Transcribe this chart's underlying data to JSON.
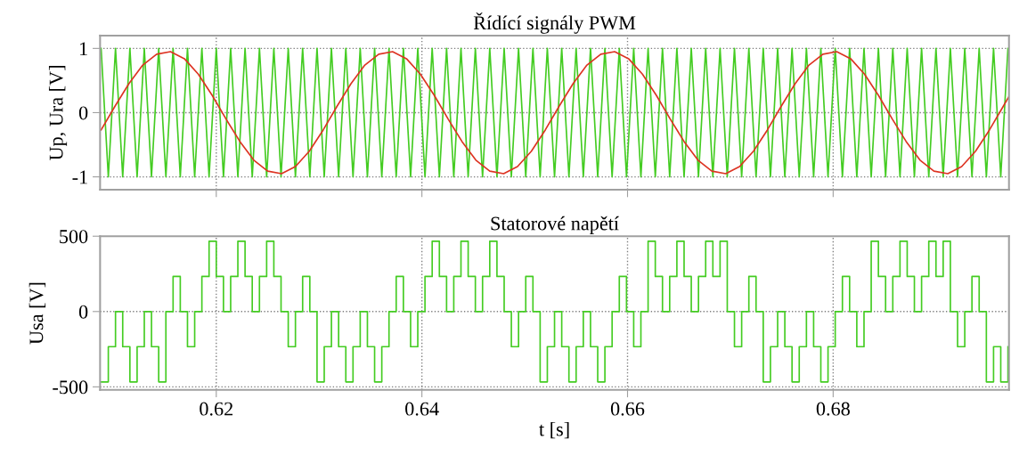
{
  "chart_data": [
    {
      "type": "line",
      "title": "Řídící signály PWM",
      "ylabel": "Up, Ura [V]",
      "xlim": [
        0.6087,
        0.6971
      ],
      "ylim": [
        -1.2,
        1.2
      ],
      "xticks": [
        0.62,
        0.64,
        0.66,
        0.68
      ],
      "yticks": [
        -1,
        0,
        1
      ],
      "grid": true,
      "tick_labels": "y",
      "series": [
        {
          "color": "#44cc22",
          "x": [
            0.6088,
            0.6095,
            0.6102,
            0.6109,
            0.6116,
            0.6123,
            0.613,
            0.6137,
            0.6144,
            0.6151,
            0.6158,
            0.6165,
            0.6172,
            0.6179,
            0.6186,
            0.6193,
            0.62,
            0.6207,
            0.6214,
            0.6221,
            0.6228,
            0.6235,
            0.6242,
            0.6249,
            0.6256,
            0.6263,
            0.627,
            0.6277,
            0.6284,
            0.6291,
            0.6298,
            0.6305,
            0.6312,
            0.6319,
            0.6326,
            0.6333,
            0.634,
            0.6347,
            0.6354,
            0.6361,
            0.6368,
            0.6375,
            0.6382,
            0.6389,
            0.6396,
            0.6403,
            0.641,
            0.6417,
            0.6424,
            0.6431,
            0.6438,
            0.6445,
            0.6452,
            0.6459,
            0.6466,
            0.6473,
            0.648,
            0.6487,
            0.6494,
            0.6501,
            0.6508,
            0.6515,
            0.6522,
            0.6529,
            0.6536,
            0.6543,
            0.655,
            0.6557,
            0.6564,
            0.6571,
            0.6578,
            0.6585,
            0.6592,
            0.6599,
            0.6606,
            0.6613,
            0.662,
            0.6627,
            0.6634,
            0.6641,
            0.6648,
            0.6655,
            0.6662,
            0.6669,
            0.6676,
            0.6683,
            0.669,
            0.6697,
            0.6704,
            0.6711,
            0.6718,
            0.6725,
            0.6732,
            0.6739,
            0.6746,
            0.6753,
            0.676,
            0.6767,
            0.6774,
            0.6781,
            0.6788,
            0.6795,
            0.6802,
            0.6809,
            0.6816,
            0.6823,
            0.683,
            0.6837,
            0.6844,
            0.6851,
            0.6858,
            0.6865,
            0.6872,
            0.6879,
            0.6886,
            0.6893,
            0.69,
            0.6907,
            0.6914,
            0.6921,
            0.6928,
            0.6935,
            0.6942,
            0.6949,
            0.6956,
            0.6963,
            0.697
          ],
          "values": [
            1,
            -1,
            1,
            -1,
            1,
            -1,
            1,
            -1,
            1,
            -1,
            1,
            -1,
            1,
            -1,
            1,
            -1,
            1,
            -1,
            1,
            -1,
            1,
            -1,
            1,
            -1,
            1,
            -1,
            1,
            -1,
            1,
            -1,
            1,
            -1,
            1,
            -1,
            1,
            -1,
            1,
            -1,
            1,
            -1,
            1,
            -1,
            1,
            -1,
            1,
            -1,
            1,
            -1,
            1,
            -1,
            1,
            -1,
            1,
            -1,
            1,
            -1,
            1,
            -1,
            1,
            -1,
            1,
            -1,
            1,
            -1,
            1,
            -1,
            1,
            -1,
            1,
            -1,
            1,
            -1,
            1,
            -1,
            1,
            -1,
            1,
            -1,
            1,
            -1,
            1,
            -1,
            1,
            -1,
            1,
            -1,
            1,
            -1,
            1,
            -1,
            1,
            -1,
            1,
            -1,
            1,
            -1,
            1,
            -1,
            1,
            -1,
            1,
            -1,
            1,
            -1,
            1,
            -1,
            1,
            -1,
            1,
            -1,
            1,
            -1,
            1,
            -1,
            1,
            -1,
            1,
            -1,
            1,
            -1,
            1,
            -1,
            1,
            -1,
            1,
            -1,
            1
          ]
        },
        {
          "color": "#dd3322",
          "x": [
            0.6088,
            0.61015,
            0.6115,
            0.61285,
            0.6142,
            0.61555,
            0.6169,
            0.61825,
            0.6196,
            0.62095,
            0.6223,
            0.62365,
            0.625,
            0.62635,
            0.6277,
            0.62905,
            0.6304,
            0.63175,
            0.6331,
            0.63445,
            0.6358,
            0.63715,
            0.6385,
            0.63985,
            0.6412,
            0.64255,
            0.6439,
            0.64525,
            0.6466,
            0.64795,
            0.6493,
            0.65065,
            0.652,
            0.65335,
            0.6547,
            0.65605,
            0.6574,
            0.65875,
            0.6601,
            0.66145,
            0.6628,
            0.66415,
            0.6655,
            0.66685,
            0.6682,
            0.66955,
            0.6709,
            0.67225,
            0.6736,
            0.67495,
            0.6763,
            0.67765,
            0.679,
            0.68035,
            0.6817,
            0.68305,
            0.6844,
            0.68575,
            0.6871,
            0.68845,
            0.6898,
            0.69115,
            0.6925,
            0.69385,
            0.6952,
            0.69655,
            0.6971
          ],
          "values": [
            -0.27,
            0.1,
            0.45,
            0.74,
            0.91,
            0.95,
            0.84,
            0.6,
            0.27,
            -0.1,
            -0.45,
            -0.74,
            -0.91,
            -0.95,
            -0.84,
            -0.6,
            -0.27,
            0.1,
            0.45,
            0.74,
            0.91,
            0.95,
            0.84,
            0.6,
            0.27,
            -0.1,
            -0.45,
            -0.74,
            -0.91,
            -0.95,
            -0.84,
            -0.6,
            -0.27,
            0.1,
            0.45,
            0.74,
            0.91,
            0.95,
            0.84,
            0.6,
            0.27,
            -0.1,
            -0.45,
            -0.74,
            -0.91,
            -0.95,
            -0.84,
            -0.6,
            -0.27,
            0.1,
            0.45,
            0.74,
            0.91,
            0.95,
            0.84,
            0.6,
            0.27,
            -0.1,
            -0.45,
            -0.74,
            -0.91,
            -0.95,
            -0.84,
            -0.6,
            -0.27,
            0.1,
            0.25
          ]
        }
      ]
    },
    {
      "type": "step",
      "title": "Statorové napětí",
      "ylabel": "Usa [V]",
      "xlabel": "t [s]",
      "xlim": [
        0.6087,
        0.6971
      ],
      "ylim": [
        -520,
        500
      ],
      "xticks": [
        0.62,
        0.64,
        0.66,
        0.68
      ],
      "yticks": [
        -500,
        0,
        500
      ],
      "grid": true,
      "series": [
        {
          "color": "#44cc22",
          "x": [
            0.6088,
            0.6095,
            0.6102,
            0.6109,
            0.6116,
            0.6123,
            0.613,
            0.6137,
            0.6144,
            0.6151,
            0.6158,
            0.6165,
            0.6172,
            0.6179,
            0.6186,
            0.6193,
            0.62,
            0.6207,
            0.6214,
            0.6221,
            0.6228,
            0.6235,
            0.6242,
            0.6249,
            0.6256,
            0.6263,
            0.627,
            0.6277,
            0.6284,
            0.6291,
            0.6298,
            0.6305,
            0.6312,
            0.6319,
            0.6326,
            0.6333,
            0.634,
            0.6347,
            0.6354,
            0.6361,
            0.6368,
            0.6375,
            0.6382,
            0.6389,
            0.6396,
            0.6403,
            0.641,
            0.6417,
            0.6424,
            0.6431,
            0.6438,
            0.6445,
            0.6452,
            0.6459,
            0.6466,
            0.6473,
            0.648,
            0.6487,
            0.6494,
            0.6501,
            0.6508,
            0.6515,
            0.6522,
            0.6529,
            0.6536,
            0.6543,
            0.655,
            0.6557,
            0.6564,
            0.6571,
            0.6578,
            0.6585,
            0.6592,
            0.6599,
            0.6606,
            0.6613,
            0.662,
            0.6627,
            0.6634,
            0.6641,
            0.6648,
            0.6655,
            0.6662,
            0.6669,
            0.6676,
            0.6683,
            0.669,
            0.6697,
            0.6704,
            0.6711,
            0.6718,
            0.6725,
            0.6732,
            0.6739,
            0.6746,
            0.6753,
            0.676,
            0.6767,
            0.6774,
            0.6781,
            0.6788,
            0.6795,
            0.6802,
            0.6809,
            0.6816,
            0.6823,
            0.683,
            0.6837,
            0.6844,
            0.6851,
            0.6858,
            0.6865,
            0.6872,
            0.6879,
            0.6886,
            0.6893,
            0.69,
            0.6907,
            0.6914,
            0.6921,
            0.6928,
            0.6935,
            0.6942,
            0.6949,
            0.6956,
            0.6963,
            0.697
          ],
          "values": [
            -467,
            -233,
            0,
            -233,
            -467,
            -233,
            0,
            -233,
            -467,
            0,
            233,
            0,
            -233,
            0,
            233,
            467,
            233,
            0,
            233,
            467,
            233,
            0,
            233,
            467,
            233,
            0,
            -233,
            0,
            233,
            0,
            -467,
            -233,
            0,
            -233,
            -467,
            -233,
            0,
            -233,
            -467,
            -233,
            0,
            233,
            0,
            -233,
            0,
            233,
            467,
            233,
            0,
            233,
            467,
            233,
            0,
            233,
            467,
            233,
            0,
            -233,
            0,
            233,
            0,
            -467,
            -233,
            0,
            -233,
            -467,
            -233,
            0,
            -233,
            -467,
            -233,
            0,
            233,
            0,
            -233,
            0,
            467,
            233,
            0,
            233,
            467,
            233,
            0,
            233,
            467,
            233,
            467,
            0,
            -233,
            0,
            233,
            0,
            -467,
            -233,
            0,
            -233,
            -467,
            -233,
            0,
            -233,
            -467,
            -233,
            0,
            233,
            0,
            -233,
            0,
            467,
            233,
            0,
            233,
            467,
            233,
            0,
            233,
            467,
            233,
            467,
            0,
            -233,
            0,
            233,
            0,
            -467,
            -233,
            -467,
            -233
          ]
        }
      ]
    }
  ]
}
